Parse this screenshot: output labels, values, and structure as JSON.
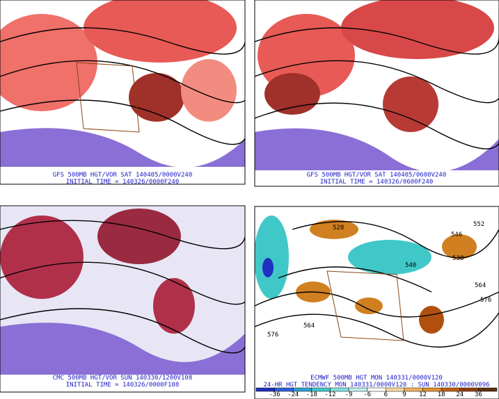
{
  "panels": [
    {
      "caption": "GFS 500MB HGT/VOR SAT 140405/0000V240",
      "initial_time": "INITIAL TIME = 140326/0000F240"
    },
    {
      "caption": "GFS 500MB HGT/VOR SAT 140405/0600V240",
      "initial_time": "INITIAL TIME = 140326/0600F240"
    },
    {
      "caption": "CMC 500MB HGT/VOR SUN 140330/1200V108",
      "initial_time": "INITIAL TIME = 140326/0000F108"
    },
    {
      "caption": "ECMWF 500MB HGT MON 140331/0000V120",
      "initial_time": "24-HR HGT TENDENCY MON 140331/0000V120 : SUN 140330/0000V096",
      "contour_labels": [
        "528",
        "552",
        "546",
        "538",
        "540",
        "564",
        "576",
        "564",
        "576"
      ],
      "colorbar": [
        "-36",
        "-24",
        "-18",
        "-12",
        "-9",
        "-6",
        "6",
        "9",
        "12",
        "18",
        "24",
        "36"
      ]
    }
  ]
}
